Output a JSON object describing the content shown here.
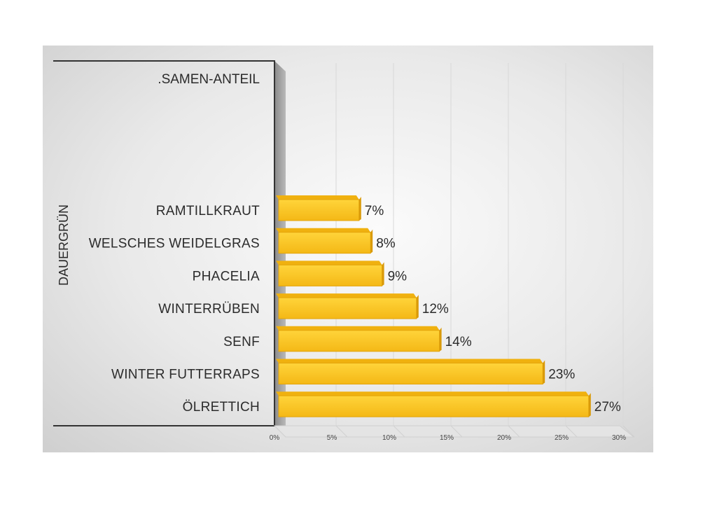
{
  "chart_data": {
    "type": "bar",
    "orientation": "horizontal",
    "series_title": ".SAMEN-ANTEIL",
    "axis_title": "DAUERGRÜN",
    "categories": [
      "RAMTILLKRAUT",
      "WELSCHES WEIDELGRAS",
      "PHACELIA",
      "WINTERRÜBEN",
      "SENF",
      "WINTER FUTTERRAPS",
      "ÖLRETTICH"
    ],
    "values": [
      7,
      8,
      9,
      12,
      14,
      23,
      27
    ],
    "value_labels": [
      "7%",
      "8%",
      "9%",
      "12%",
      "14%",
      "23%",
      "27%"
    ],
    "xlim": [
      0,
      30
    ],
    "ticks": [
      0,
      5,
      10,
      15,
      20,
      25,
      30
    ],
    "tick_labels": [
      "0%",
      "5%",
      "10%",
      "15%",
      "20%",
      "25%",
      "30%"
    ],
    "grid": true,
    "bar_color": "#F7C21B"
  }
}
